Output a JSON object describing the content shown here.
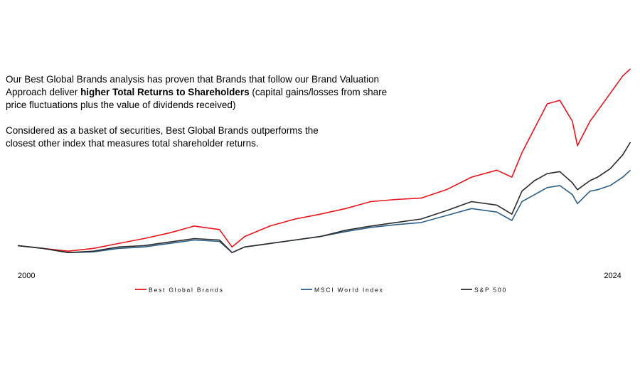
{
  "intro": {
    "paragraph_1": {
      "before": "Our Best Global Brands analysis has proven that  Brands that follow our Brand Valuation Approach deliver ",
      "bold": "higher Total Returns to Shareholders",
      "after": " (capital gains/losses from share price fluctuations plus the value of dividends received)"
    },
    "paragraph_2": "Considered as a basket of securities, Best Global Brands outperforms the closest other index that measures total shareholder returns."
  },
  "chart_data": {
    "type": "line",
    "x": [
      2000,
      2001,
      2002,
      2003,
      2004,
      2005,
      2006,
      2007,
      2008,
      2008.5,
      2009,
      2010,
      2011,
      2012,
      2013,
      2014,
      2015,
      2016,
      2017,
      2018,
      2019,
      2019.6,
      2020,
      2020.5,
      2021,
      2021.5,
      2022,
      2022.2,
      2022.7,
      2023,
      2023.5,
      2024,
      2024.3
    ],
    "series": [
      {
        "name": "Best Global Brands",
        "color": "#e8141b",
        "values": [
          100,
          96,
          92,
          96,
          103,
          110,
          118,
          128,
          123,
          98,
          113,
          128,
          138,
          145,
          153,
          163,
          166,
          168,
          180,
          198,
          208,
          198,
          233,
          268,
          303,
          308,
          278,
          243,
          278,
          293,
          318,
          343,
          353
        ]
      },
      {
        "name": "MSCI World Index",
        "color": "#2e5f86",
        "values": [
          100,
          96,
          90,
          91,
          96,
          98,
          103,
          108,
          106,
          90,
          98,
          103,
          108,
          113,
          120,
          126,
          130,
          133,
          143,
          153,
          148,
          136,
          163,
          173,
          183,
          186,
          173,
          160,
          178,
          180,
          186,
          198,
          208
        ]
      },
      {
        "name": "S&P 500",
        "color": "#2b2b2b",
        "values": [
          100,
          96,
          90,
          92,
          98,
          100,
          105,
          110,
          108,
          90,
          98,
          103,
          108,
          113,
          122,
          128,
          133,
          138,
          150,
          163,
          158,
          145,
          178,
          193,
          203,
          206,
          190,
          180,
          193,
          198,
          210,
          230,
          248
        ]
      }
    ],
    "xlim": [
      2000,
      2024.4
    ],
    "xticks": [
      2000,
      2024
    ],
    "ylim": [
      80,
      360
    ],
    "grid": false,
    "legend": "bottom"
  }
}
